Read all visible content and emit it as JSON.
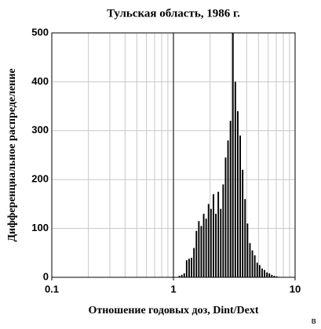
{
  "chart_data": {
    "type": "histogram",
    "title": "Тульская область, 1986 г.",
    "ylabel": "Дифференциальное распределение",
    "xlabel": "Отношение годовых доз, Dint/Dext",
    "panel_label": "в",
    "x_log": true,
    "xlim": [
      0.1,
      10
    ],
    "xticks": [
      0.1,
      1,
      10
    ],
    "x_minor_ticks": [
      0.2,
      0.3,
      0.4,
      0.5,
      0.6,
      0.7,
      0.8,
      0.9,
      2,
      3,
      4,
      5,
      6,
      7,
      8,
      9
    ],
    "reference_x": 1,
    "ylim": [
      0,
      500
    ],
    "yticks": [
      0,
      100,
      200,
      300,
      400,
      500
    ],
    "grid": true,
    "color": "#000000",
    "bins": [
      1.096,
      1.148,
      1.202,
      1.259,
      1.318,
      1.38,
      1.445,
      1.514,
      1.585,
      1.66,
      1.738,
      1.82,
      1.905,
      1.995,
      2.089,
      2.188,
      2.291,
      2.399,
      2.512,
      2.63,
      2.754,
      2.884,
      3.02,
      3.162,
      3.311,
      3.467,
      3.631,
      3.802,
      3.981,
      4.169,
      4.365,
      4.571,
      4.786,
      5.012,
      5.248,
      5.495,
      5.754,
      6.026,
      6.31,
      6.607,
      6.918,
      7.244,
      7.586
    ],
    "values": [
      3,
      5,
      8,
      35,
      38,
      40,
      60,
      95,
      115,
      105,
      130,
      120,
      150,
      140,
      170,
      130,
      175,
      140,
      190,
      245,
      280,
      320,
      500,
      400,
      340,
      290,
      220,
      160,
      110,
      70,
      55,
      45,
      30,
      25,
      18,
      15,
      10,
      8,
      5,
      3,
      2,
      1
    ]
  }
}
